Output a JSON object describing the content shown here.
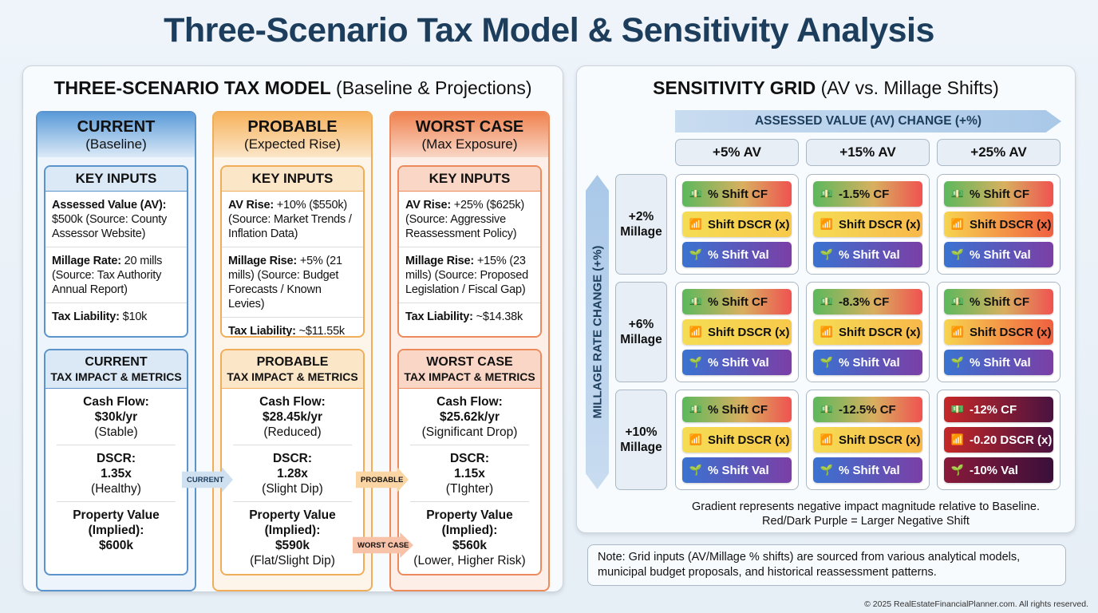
{
  "title": "Three-Scenario Tax Model & Sensitivity Analysis",
  "left": {
    "title_bold": "THREE-SCENARIO TAX MODEL",
    "title_rest": " (Baseline & Projections)"
  },
  "scenarios": [
    {
      "name": "CURRENT",
      "subtitle": "(Baseline)",
      "inputs_title": "KEY INPUTS",
      "inputs": [
        {
          "label": "Assessed Value (AV):",
          "text": " $500k (Source: County Assessor Website)"
        },
        {
          "label": "Millage Rate:",
          "text": " 20 mills (Source: Tax Authority Annual Report)"
        },
        {
          "label": "Tax Liability:",
          "text": " $10k"
        }
      ],
      "impact_title": "CURRENT",
      "impact_sub": "TAX IMPACT & METRICS",
      "metrics": [
        {
          "label": "Cash Flow:",
          "value": "$30k/yr",
          "note": "(Stable)"
        },
        {
          "label": "DSCR:",
          "value": "1.35x",
          "note": "(Healthy)"
        },
        {
          "label": "Property Value (Implied):",
          "value": "$600k",
          "note": ""
        }
      ],
      "colors": {
        "border": "#5b93cc",
        "head": "#5b9bd8",
        "bg": "#edf4fb",
        "tint": "#dbe9f7"
      }
    },
    {
      "name": "PROBABLE",
      "subtitle": "(Expected Rise)",
      "inputs_title": "KEY INPUTS",
      "inputs": [
        {
          "label": "AV Rise:",
          "text": " +10% ($550k) (Source: Market Trends / Inflation Data)"
        },
        {
          "label": "Millage Rise:",
          "text": " +5% (21 mills) (Source: Budget Forecasts / Known Levies)"
        },
        {
          "label": "Tax Liability:",
          "text": " ~$11.55k"
        }
      ],
      "impact_title": "PROBABLE",
      "impact_sub": "TAX IMPACT & METRICS",
      "metrics": [
        {
          "label": "Cash Flow:",
          "value": "$28.45k/yr",
          "note": "(Reduced)"
        },
        {
          "label": "DSCR:",
          "value": "1.28x",
          "note": "(Slight Dip)"
        },
        {
          "label": "Property Value (Implied):",
          "value": "$590k",
          "note": "(Flat/Slight Dip)"
        }
      ],
      "colors": {
        "border": "#f0ad5a",
        "head": "#f7b25c",
        "bg": "#fdf5e9",
        "tint": "#fbe6c8"
      }
    },
    {
      "name": "WORST CASE",
      "subtitle": "(Max Exposure)",
      "inputs_title": "KEY INPUTS",
      "inputs": [
        {
          "label": "AV Rise:",
          "text": " +25% ($625k) (Source: Aggressive Reassessment Policy)"
        },
        {
          "label": "Millage Rise:",
          "text": " +15% (23 mills) (Source: Proposed Legislation / Fiscal Gap)"
        },
        {
          "label": "Tax Liability:",
          "text": " ~$14.38k"
        }
      ],
      "impact_title": "WORST CASE",
      "impact_sub": "TAX IMPACT & METRICS",
      "metrics": [
        {
          "label": "Cash Flow:",
          "value": "$25.62k/yr",
          "note": "(Significant Drop)"
        },
        {
          "label": "DSCR:",
          "value": "1.15x",
          "note": "(TIghter)"
        },
        {
          "label": "Property Value (Implied):",
          "value": "$560k",
          "note": "(Lower, Higher Risk)"
        }
      ],
      "colors": {
        "border": "#ec8a5c",
        "head": "#f0824f",
        "bg": "#fdeee8",
        "tint": "#f9d6c6"
      }
    }
  ],
  "arrows": {
    "current": "CURRENT",
    "probable": "PROBABLE",
    "worst": "WORST CASE"
  },
  "right": {
    "title_bold": "SENSITIVITY GRID",
    "title_rest": " (AV vs. Millage Shifts)",
    "x_axis": "ASSESSED VALUE (AV) CHANGE (+%)",
    "y_axis": "MILLAGE RATE CHANGE (+%)",
    "columns": [
      "+5% AV",
      "+15% AV",
      "+25% AV"
    ],
    "rows": [
      "+2% Millage",
      "+6% Millage",
      "+10% Millage"
    ],
    "grid": [
      [
        [
          "% Shift CF",
          "Shift DSCR (x)",
          "% Shift Val"
        ],
        [
          "-1.5% CF",
          "Shift DSCR (x)",
          "% Shift Val"
        ],
        [
          "% Shift CF",
          "Shift DSCR (x)",
          "% Shift Val"
        ]
      ],
      [
        [
          "% Shift CF",
          "Shift DSCR (x)",
          "% Shift Val"
        ],
        [
          "-8.3% CF",
          "Shift DSCR (x)",
          "% Shift Val"
        ],
        [
          "% Shift CF",
          "Shift DSCR (x)",
          "% Shift Val"
        ]
      ],
      [
        [
          "% Shift CF",
          "Shift DSCR (x)",
          "% Shift Val"
        ],
        [
          "-12.5% CF",
          "Shift DSCR (x)",
          "% Shift Val"
        ],
        [
          "-12% CF",
          "-0.20 DSCR (x)",
          "-10% Val"
        ]
      ]
    ],
    "legend": [
      "Gradient represents negative impact magnitude relative to Baseline.",
      "Red/Dark Purple = Larger Negative Shift"
    ]
  },
  "note": "Note: Grid inputs (AV/Millage % shifts) are sourced from various analytical models, municipal budget proposals, and historical reassessment patterns.",
  "copyright": "© 2025 RealEstateFinancialPlanner.com. All rights reserved.",
  "icons": [
    "cash-flow-icon",
    "bar-chart-icon",
    "value-growth-icon"
  ]
}
